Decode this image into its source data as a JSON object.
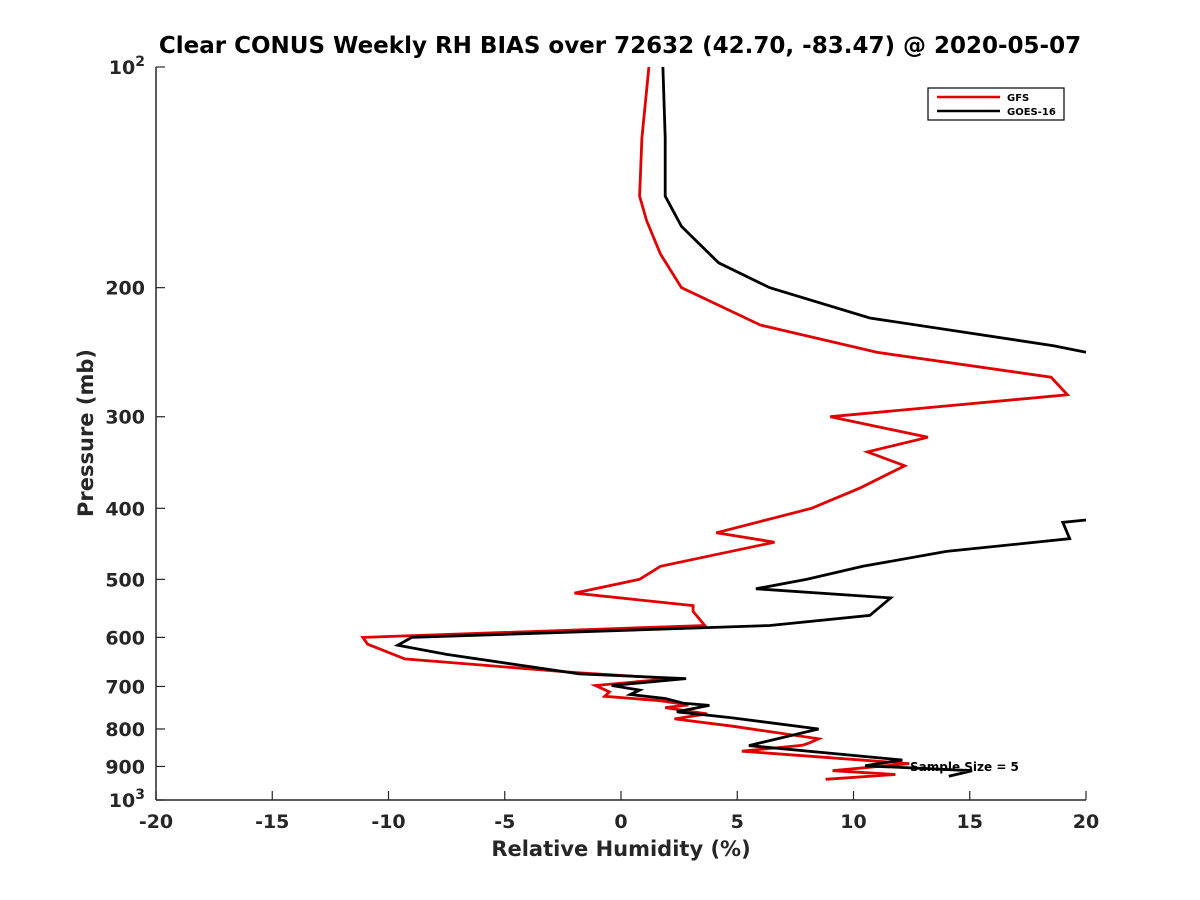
{
  "chart_data": {
    "type": "line",
    "title": "Clear CONUS Weekly RH BIAS over 72632 (42.70, -83.47) @ 2020-05-07",
    "xlabel": "Relative Humidity (%)",
    "ylabel": "Pressure (mb)",
    "xlim": [
      -20,
      20
    ],
    "ylim": [
      100,
      1000
    ],
    "y_scale": "log",
    "y_reversed": true,
    "grid": false,
    "legend_position": "top-right",
    "x_ticks": [
      "-20",
      "-15",
      "-10",
      "-5",
      "0",
      "5",
      "10",
      "15",
      "20"
    ],
    "y_ticks": [
      {
        "value": 100,
        "base": "10",
        "exp": "2"
      },
      {
        "value": 200,
        "label": "200"
      },
      {
        "value": 300,
        "label": "300"
      },
      {
        "value": 400,
        "label": "400"
      },
      {
        "value": 500,
        "label": "500"
      },
      {
        "value": 600,
        "label": "600"
      },
      {
        "value": 700,
        "label": "700"
      },
      {
        "value": 800,
        "label": "800"
      },
      {
        "value": 900,
        "label": "900"
      },
      {
        "value": 1000,
        "base": "10",
        "exp": "3"
      }
    ],
    "series": [
      {
        "name": "GFS",
        "color": "#e00000",
        "points": [
          [
            1.2,
            100
          ],
          [
            0.9,
            125
          ],
          [
            0.8,
            150
          ],
          [
            1.1,
            162
          ],
          [
            1.7,
            180
          ],
          [
            2.6,
            200
          ],
          [
            6.0,
            225
          ],
          [
            11.0,
            245
          ],
          [
            18.5,
            265
          ],
          [
            19.2,
            280
          ],
          [
            9.0,
            300
          ],
          [
            13.2,
            320
          ],
          [
            10.6,
            335
          ],
          [
            12.2,
            350
          ],
          [
            10.3,
            375
          ],
          [
            8.2,
            400
          ],
          [
            4.1,
            432
          ],
          [
            6.6,
            445
          ],
          [
            1.7,
            480
          ],
          [
            0.8,
            500
          ],
          [
            -2.0,
            522
          ],
          [
            3.1,
            543
          ],
          [
            3.1,
            553
          ],
          [
            3.6,
            578
          ],
          [
            -11.1,
            600
          ],
          [
            -10.9,
            613
          ],
          [
            -9.3,
            642
          ],
          [
            -2.0,
            670
          ],
          [
            2.2,
            683
          ],
          [
            -1.1,
            698
          ],
          [
            -0.5,
            712
          ],
          [
            -0.7,
            722
          ],
          [
            1.7,
            732
          ],
          [
            2.9,
            742
          ],
          [
            1.9,
            748
          ],
          [
            3.7,
            763
          ],
          [
            2.3,
            775
          ],
          [
            4.8,
            793
          ],
          [
            8.5,
            825
          ],
          [
            8.1,
            836
          ],
          [
            7.8,
            842
          ],
          [
            5.2,
            858
          ],
          [
            12.4,
            892
          ],
          [
            9.1,
            912
          ],
          [
            11.8,
            923
          ],
          [
            8.8,
            937
          ]
        ]
      },
      {
        "name": "GOES-16",
        "color": "#000000",
        "points": [
          [
            1.8,
            100
          ],
          [
            1.9,
            125
          ],
          [
            1.9,
            150
          ],
          [
            2.6,
            165
          ],
          [
            4.2,
            185
          ],
          [
            6.4,
            200
          ],
          [
            10.7,
            220
          ],
          [
            18.6,
            240
          ],
          [
            20.0,
            245
          ]
        ],
        "points_lower": [
          [
            20.0,
            415
          ],
          [
            19.0,
            418
          ],
          [
            19.3,
            440
          ],
          [
            14.0,
            458
          ],
          [
            10.4,
            480
          ],
          [
            8.0,
            500
          ],
          [
            5.8,
            515
          ],
          [
            11.6,
            530
          ],
          [
            10.7,
            560
          ],
          [
            6.4,
            578
          ],
          [
            -9.0,
            600
          ],
          [
            -9.6,
            615
          ],
          [
            -7.5,
            633
          ],
          [
            -1.8,
            673
          ],
          [
            2.8,
            683
          ],
          [
            -0.4,
            698
          ],
          [
            0.8,
            708
          ],
          [
            0.4,
            718
          ],
          [
            1.9,
            727
          ],
          [
            2.7,
            738
          ],
          [
            3.8,
            743
          ],
          [
            2.4,
            758
          ],
          [
            4.7,
            772
          ],
          [
            8.5,
            800
          ],
          [
            5.5,
            843
          ],
          [
            12.1,
            882
          ],
          [
            10.5,
            898
          ],
          [
            15.1,
            912
          ],
          [
            14.1,
            928
          ]
        ]
      }
    ],
    "annotation": "Sample Size = 5"
  }
}
